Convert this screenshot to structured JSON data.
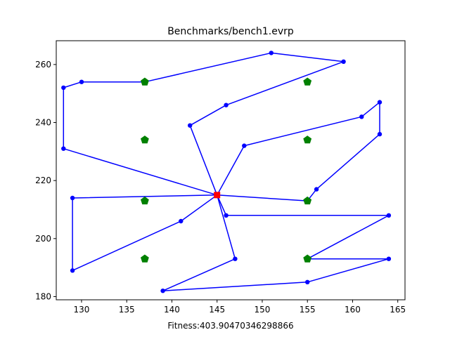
{
  "chart_data": {
    "type": "scatter",
    "title": "Benchmarks/bench1.evrp",
    "xlabel": "Fitness:403.90470346298866",
    "ylabel": "",
    "xlim": [
      127.2,
      165.8
    ],
    "ylim": [
      178.9,
      268.2
    ],
    "x_ticks": [
      130,
      135,
      140,
      145,
      150,
      155,
      160,
      165
    ],
    "y_ticks": [
      180,
      200,
      220,
      240,
      260
    ],
    "grid": false,
    "colors": {
      "route": "#0000ff",
      "depot": "#ff0000",
      "station": "#008000"
    },
    "routes": [
      [
        [
          145,
          215
        ],
        [
          128,
          231
        ],
        [
          128,
          252
        ],
        [
          130,
          254
        ],
        [
          137,
          254
        ],
        [
          151,
          264
        ],
        [
          159,
          261
        ],
        [
          146,
          246
        ],
        [
          142,
          239
        ],
        [
          145,
          215
        ]
      ],
      [
        [
          145,
          215
        ],
        [
          129,
          214
        ],
        [
          129,
          189
        ],
        [
          141,
          206
        ],
        [
          145,
          215
        ]
      ],
      [
        [
          145,
          215
        ],
        [
          148,
          232
        ],
        [
          161,
          242
        ],
        [
          163,
          247
        ],
        [
          163,
          236
        ],
        [
          156,
          217
        ],
        [
          155,
          213
        ],
        [
          145,
          215
        ]
      ],
      [
        [
          145,
          215
        ],
        [
          146,
          208
        ],
        [
          164,
          208
        ],
        [
          155,
          193
        ],
        [
          164,
          193
        ],
        [
          155,
          185
        ],
        [
          139,
          182
        ],
        [
          147,
          193
        ],
        [
          145,
          215
        ]
      ]
    ],
    "customers": [
      [
        128,
        231
      ],
      [
        128,
        252
      ],
      [
        130,
        254
      ],
      [
        151,
        264
      ],
      [
        159,
        261
      ],
      [
        146,
        246
      ],
      [
        142,
        239
      ],
      [
        129,
        214
      ],
      [
        129,
        189
      ],
      [
        141,
        206
      ],
      [
        148,
        232
      ],
      [
        161,
        242
      ],
      [
        163,
        247
      ],
      [
        163,
        236
      ],
      [
        156,
        217
      ],
      [
        146,
        208
      ],
      [
        164,
        208
      ],
      [
        164,
        193
      ],
      [
        155,
        185
      ],
      [
        139,
        182
      ],
      [
        147,
        193
      ]
    ],
    "depot": [
      145,
      215
    ],
    "stations": [
      [
        137,
        254
      ],
      [
        155,
        254
      ],
      [
        137,
        234
      ],
      [
        155,
        234
      ],
      [
        137,
        213
      ],
      [
        155,
        213
      ],
      [
        137,
        193
      ],
      [
        155,
        193
      ]
    ]
  }
}
